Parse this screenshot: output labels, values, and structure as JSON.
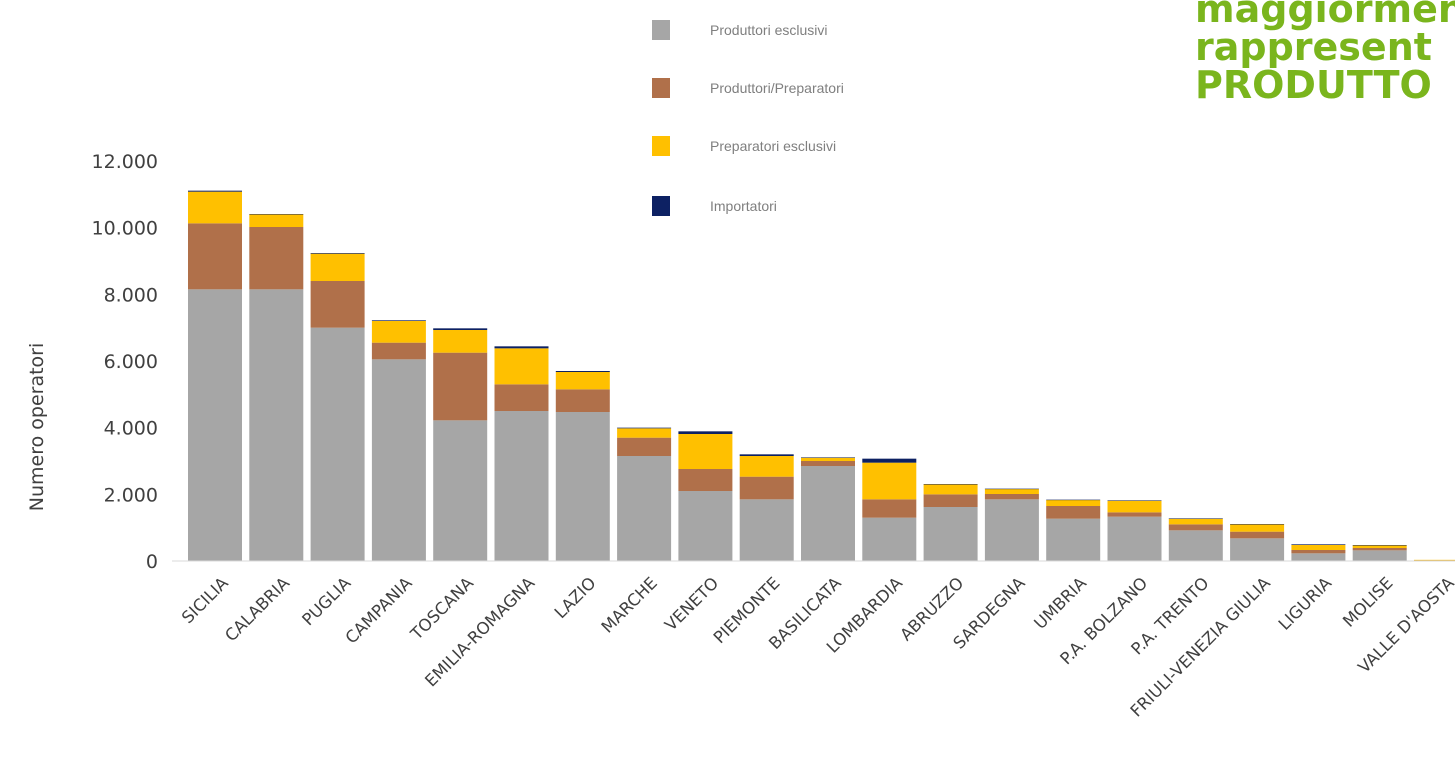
{
  "title_lines": [
    "maggiormente",
    "rappresent",
    "PRODUTTO"
  ],
  "colors": {
    "produttori_esclusivi": "#a6a6a6",
    "produttori_preparatori": "#b0704a",
    "preparatori_esclusivi": "#ffc000",
    "importatori": "#0d2163",
    "title": "#7ab51d"
  },
  "chart_data": {
    "type": "bar",
    "stacked": true,
    "title": "",
    "xlabel": "",
    "ylabel": "Numero operatori",
    "ylim": [
      0,
      12000
    ],
    "yticks": [
      0,
      2000,
      4000,
      6000,
      8000,
      10000,
      12000
    ],
    "ytick_labels": [
      "0",
      "2.000",
      "4.000",
      "6.000",
      "8.000",
      "10.000",
      "12.000"
    ],
    "grid": false,
    "legend_position": "top-center",
    "categories": [
      "SICILIA",
      "CALABRIA",
      "PUGLIA",
      "CAMPANIA",
      "TOSCANA",
      "EMILIA-ROMAGNA",
      "LAZIO",
      "MARCHE",
      "VENETO",
      "PIEMONTE",
      "BASILICATA",
      "LOMBARDIA",
      "ABRUZZO",
      "SARDEGNA",
      "UMBRIA",
      "P.A. BOLZANO",
      "P.A. TRENTO",
      "FRIULI-VENEZIA GIULIA",
      "LIGURIA",
      "MOLISE",
      "VALLE D'AOSTA"
    ],
    "series": [
      {
        "name": "Produttori esclusivi",
        "color": "#a6a6a6",
        "values": [
          8150,
          8150,
          7000,
          6050,
          4220,
          4500,
          4470,
          3150,
          2100,
          1850,
          2850,
          1300,
          1620,
          1850,
          1270,
          1330,
          920,
          680,
          230,
          320,
          20
        ]
      },
      {
        "name": "Produttori/Preparatori",
        "color": "#b0704a",
        "values": [
          1980,
          1870,
          1400,
          500,
          2030,
          800,
          680,
          550,
          660,
          680,
          150,
          550,
          380,
          160,
          380,
          130,
          180,
          200,
          100,
          70,
          5
        ]
      },
      {
        "name": "Preparatori esclusivi",
        "color": "#ffc000",
        "values": [
          950,
          380,
          820,
          650,
          680,
          1080,
          520,
          280,
          1050,
          620,
          100,
          1100,
          300,
          150,
          180,
          350,
          170,
          220,
          150,
          80,
          10
        ]
      },
      {
        "name": "Importatori",
        "color": "#0d2163",
        "values": [
          30,
          10,
          20,
          20,
          50,
          60,
          30,
          20,
          80,
          50,
          10,
          120,
          10,
          10,
          10,
          10,
          10,
          10,
          20,
          10,
          0
        ]
      }
    ]
  }
}
